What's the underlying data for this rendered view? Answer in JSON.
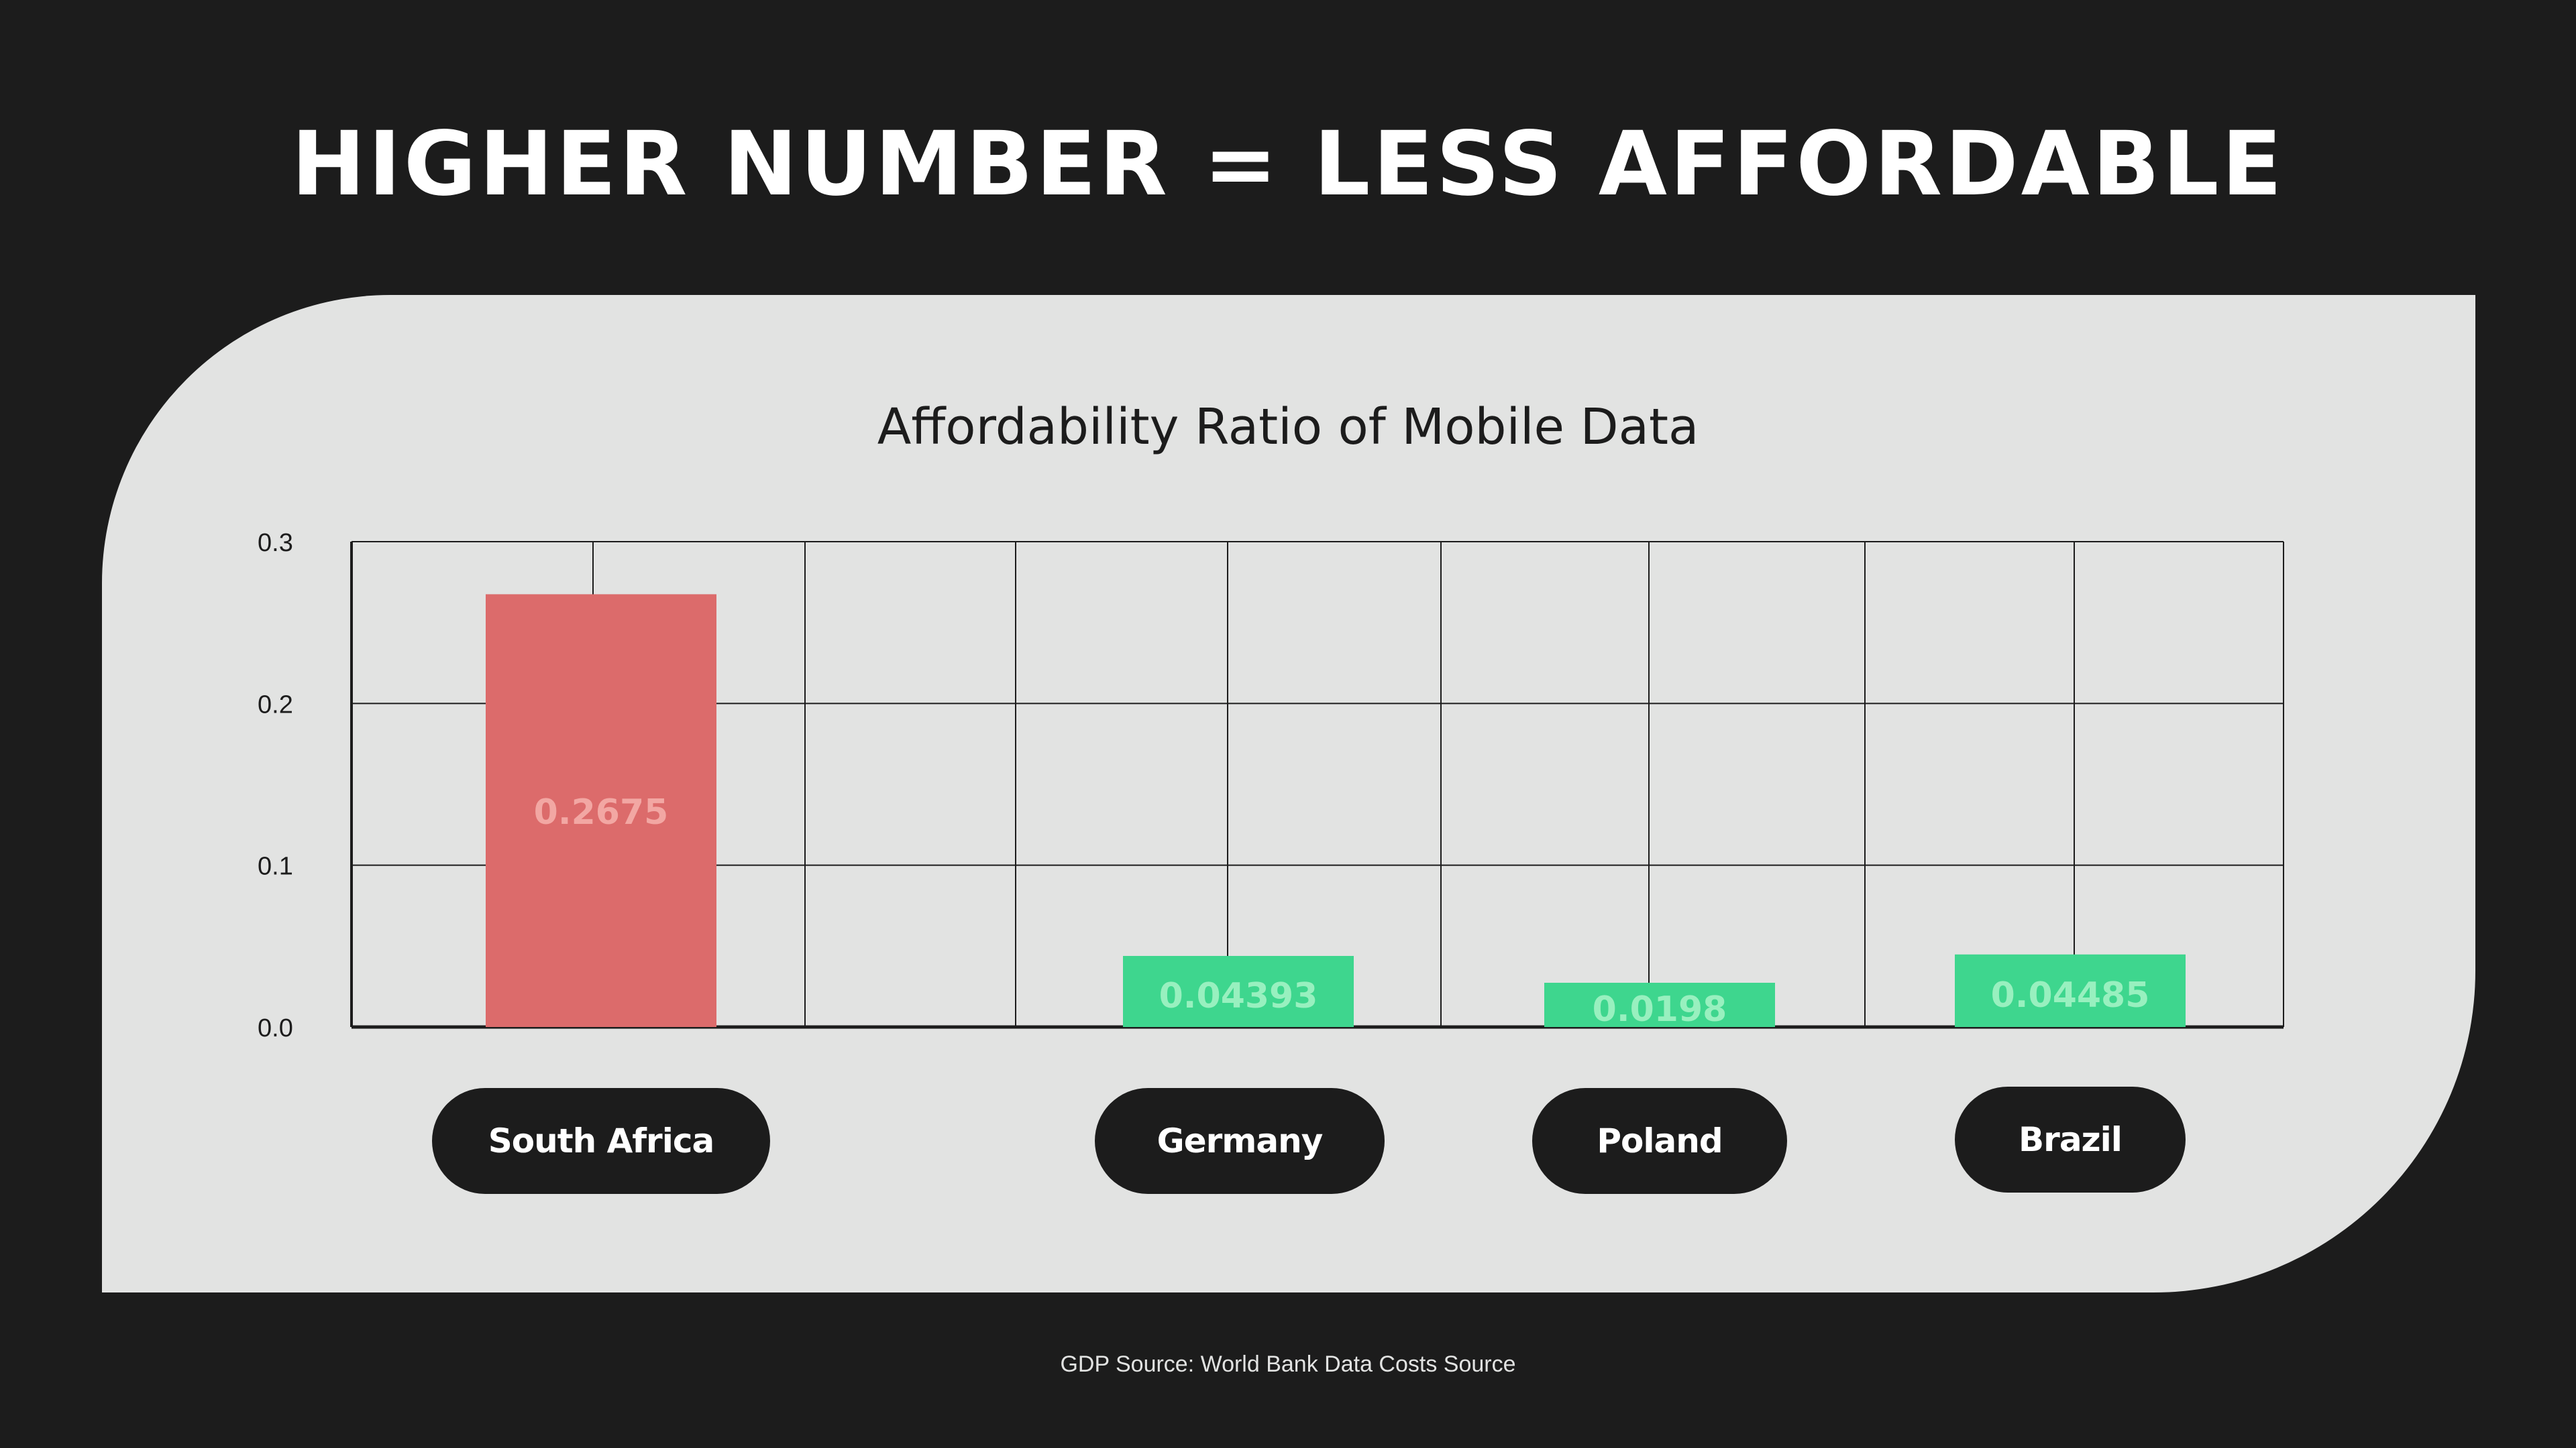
{
  "headline": "HIGHER NUMBER  =  LESS AFFORDABLE",
  "source": "GDP Source: World Bank Data Costs Source",
  "colors": {
    "background": "#1c1c1c",
    "panel": "#e2e3e2",
    "high_bar": "#dc6b6b",
    "low_bar": "#3ed68e",
    "high_label": "#f2a7a3",
    "low_label": "#98f0bf",
    "grid": "#1c1c1c"
  },
  "chart_data": {
    "type": "bar",
    "title": "Affordability Ratio of Mobile Data",
    "categories": [
      "South Africa",
      "",
      "Germany",
      "Poland",
      "Brazil"
    ],
    "values": [
      0.2675,
      null,
      0.04393,
      0.0198,
      0.04485
    ],
    "value_labels": [
      "0.2675",
      "",
      "0.04393",
      "0.0198",
      "0.04485"
    ],
    "ylim": [
      0,
      0.3
    ],
    "yticks": [
      "0.0",
      "0.1",
      "0.2",
      "0.3"
    ],
    "grid": true,
    "xlabel": "",
    "ylabel": ""
  },
  "country_labels": [
    "South Africa",
    "Germany",
    "Poland",
    "Brazil"
  ]
}
